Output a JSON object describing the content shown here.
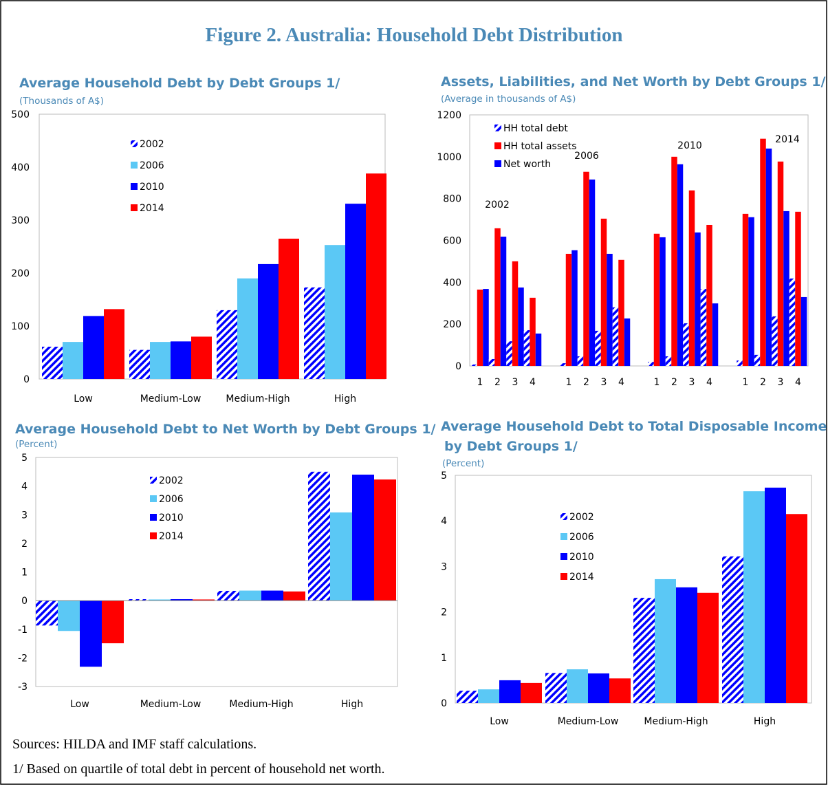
{
  "figure_title": "Figure 2. Australia: Household Debt Distribution",
  "sources": "Sources: HILDA and IMF staff calculations.",
  "footnote": "1/ Based on quartile of total debt in percent of household net worth.",
  "colors": {
    "2002": "#0000FF",
    "2006": "#5BC8F5",
    "2010": "#0000FF",
    "2014": "#FF0000",
    "title": "#4A89B6",
    "hatch": "#0000FF"
  },
  "chart_data": [
    {
      "type": "bar",
      "title": "Average Household Debt by Debt Groups 1/",
      "subtitle": "(Thousands of A$)",
      "categories": [
        "Low",
        "Medium-Low",
        "Medium-High",
        "High"
      ],
      "ylim": [
        0,
        500
      ],
      "yticks": [
        0,
        100,
        200,
        300,
        400,
        500
      ],
      "legend_placement": "top-left",
      "grid": false,
      "series": [
        {
          "name": "2002",
          "style": "hatched",
          "values": [
            61,
            55,
            130,
            173
          ]
        },
        {
          "name": "2006",
          "values": [
            70,
            70,
            190,
            253
          ]
        },
        {
          "name": "2010",
          "values": [
            119,
            71,
            217,
            331
          ]
        },
        {
          "name": "2014",
          "values": [
            132,
            80,
            265,
            388
          ]
        }
      ]
    },
    {
      "type": "bar",
      "title": "Assets, Liabilities, and Net Worth by Debt Groups 1/",
      "subtitle": "(Average in thousands of A$)",
      "groups": [
        "2002",
        "2006",
        "2010",
        "2014"
      ],
      "categories": [
        "1",
        "2",
        "3",
        "4"
      ],
      "ylim": [
        0,
        1200
      ],
      "yticks": [
        0,
        200,
        400,
        600,
        800,
        1000,
        1200
      ],
      "legend_placement": "top-left",
      "grid": false,
      "series": [
        {
          "name": "HH total debt",
          "style": "hatched",
          "color": "#0000FF",
          "values": [
            [
              7,
              33,
              118,
              171
            ],
            [
              13,
              46,
              168,
              280
            ],
            [
              20,
              46,
              204,
              368
            ],
            [
              26,
              53,
              237,
              418
            ]
          ]
        },
        {
          "name": "HH total assets",
          "color": "#FF0000",
          "values": [
            [
              365,
              658,
              500,
              326
            ],
            [
              536,
              928,
              704,
              507
            ],
            [
              632,
              1000,
              839,
              674
            ],
            [
              727,
              1086,
              977,
              737
            ]
          ]
        },
        {
          "name": "Net worth",
          "color": "#0000FF",
          "values": [
            [
              368,
              618,
              375,
              155
            ],
            [
              553,
              891,
              536,
              227
            ],
            [
              615,
              964,
              638,
              299
            ],
            [
              711,
              1039,
              740,
              329
            ]
          ]
        }
      ]
    },
    {
      "type": "bar",
      "title": "Average Household Debt to Net Worth by Debt Groups 1/",
      "subtitle": "(Percent)",
      "categories": [
        "Low",
        "Medium-Low",
        "Medium-High",
        "High"
      ],
      "ylim": [
        -3,
        5
      ],
      "yticks": [
        -3,
        -2,
        -1,
        0,
        1,
        2,
        3,
        4,
        5
      ],
      "legend_placement": "top-center",
      "grid": false,
      "series": [
        {
          "name": "2002",
          "style": "hatched",
          "values": [
            -0.87,
            0.05,
            0.34,
            4.5
          ]
        },
        {
          "name": "2006",
          "values": [
            -1.06,
            0.04,
            0.35,
            3.08
          ]
        },
        {
          "name": "2010",
          "values": [
            -2.31,
            0.05,
            0.35,
            4.4
          ]
        },
        {
          "name": "2014",
          "values": [
            -1.49,
            0.04,
            0.32,
            4.23
          ]
        }
      ]
    },
    {
      "type": "bar",
      "title": "Average Household Debt to Total Disposable Income Ratio",
      "title_line2": "by Debt Groups 1/",
      "subtitle": "(Percent)",
      "categories": [
        "Low",
        "Medium-Low",
        "Medium-High",
        "High"
      ],
      "ylim": [
        0,
        5
      ],
      "yticks": [
        0,
        1,
        2,
        3,
        4,
        5
      ],
      "legend_placement": "center-left",
      "grid": false,
      "series": [
        {
          "name": "2002",
          "style": "hatched",
          "values": [
            0.27,
            0.66,
            2.31,
            3.22
          ]
        },
        {
          "name": "2006",
          "values": [
            0.3,
            0.74,
            2.72,
            4.65
          ]
        },
        {
          "name": "2010",
          "values": [
            0.5,
            0.65,
            2.54,
            4.73
          ]
        },
        {
          "name": "2014",
          "values": [
            0.44,
            0.54,
            2.42,
            4.15
          ]
        }
      ]
    }
  ]
}
